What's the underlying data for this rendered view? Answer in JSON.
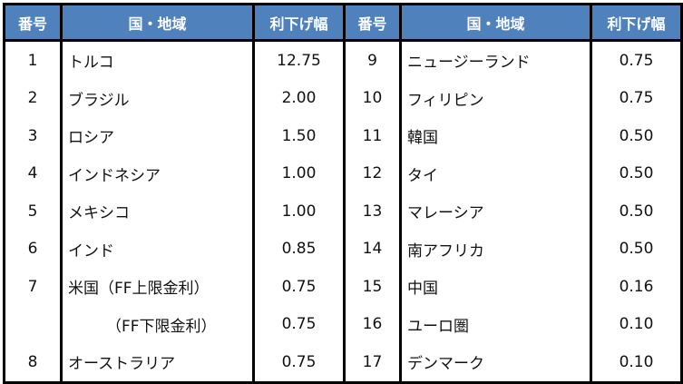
{
  "colors": {
    "header_bg": "#4f81bd",
    "header_text": "#ffffff",
    "border": "#000000"
  },
  "headers": [
    "番号",
    "国・地域",
    "利下げ幅",
    "番号",
    "国・地域",
    "利下げ幅"
  ],
  "left": [
    {
      "no": "1",
      "name": "トルコ",
      "cut": "12.75"
    },
    {
      "no": "2",
      "name": "ブラジル",
      "cut": "2.00"
    },
    {
      "no": "3",
      "name": "ロシア",
      "cut": "1.50"
    },
    {
      "no": "4",
      "name": "インドネシア",
      "cut": "1.00"
    },
    {
      "no": "5",
      "name": "メキシコ",
      "cut": "1.00"
    },
    {
      "no": "6",
      "name": "インド",
      "cut": "0.85"
    },
    {
      "no": "7",
      "name": "米国（FF上限金利）",
      "cut": "0.75"
    },
    {
      "no": "",
      "name": "（FF下限金利）",
      "cut": "0.75"
    },
    {
      "no": "8",
      "name": "オーストラリア",
      "cut": "0.75"
    }
  ],
  "right": [
    {
      "no": "9",
      "name": "ニュージーランド",
      "cut": "0.75"
    },
    {
      "no": "10",
      "name": "フィリピン",
      "cut": "0.75"
    },
    {
      "no": "11",
      "name": "韓国",
      "cut": "0.50"
    },
    {
      "no": "12",
      "name": "タイ",
      "cut": "0.50"
    },
    {
      "no": "13",
      "name": "マレーシア",
      "cut": "0.50"
    },
    {
      "no": "14",
      "name": "南アフリカ",
      "cut": "0.50"
    },
    {
      "no": "15",
      "name": "中国",
      "cut": "0.16"
    },
    {
      "no": "16",
      "name": "ユーロ圏",
      "cut": "0.10"
    },
    {
      "no": "17",
      "name": "デンマーク",
      "cut": "0.10"
    }
  ]
}
